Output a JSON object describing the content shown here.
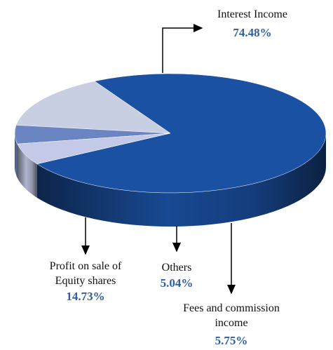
{
  "chart_data": {
    "type": "pie",
    "categories": [
      "Interest Income",
      "Profit on sale of Equity shares",
      "Others",
      "Fees and commission income"
    ],
    "values": [
      74.48,
      14.73,
      5.04,
      5.75
    ],
    "value_labels": [
      "74.48%",
      "14.73%",
      "5.04%",
      "5.75%"
    ],
    "colors": [
      "#1b51a3",
      "#c8cfe2",
      "#6a85c2",
      "#c3c9e6"
    ]
  }
}
